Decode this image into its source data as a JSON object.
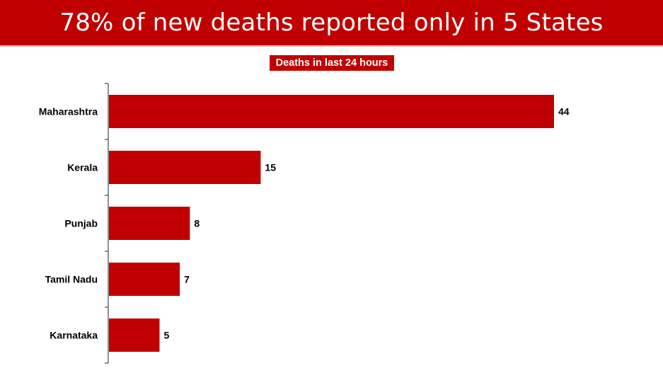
{
  "colors": {
    "accent": "#c00000",
    "text": "#000000",
    "axis": "#555555"
  },
  "header": {
    "title": "78% of new deaths reported only in 5 States",
    "badge": "Deaths in last 24 hours"
  },
  "chart_data": {
    "type": "bar",
    "orientation": "horizontal",
    "categories": [
      "Maharashtra",
      "Kerala",
      "Punjab",
      "Tamil Nadu",
      "Karnataka"
    ],
    "values": [
      44,
      15,
      8,
      7,
      5
    ],
    "title": "78% of new deaths reported only in 5 States",
    "subtitle": "Deaths in last 24 hours",
    "xlim": [
      0,
      44
    ],
    "grid": false,
    "legend": "none",
    "data_labels": true
  }
}
